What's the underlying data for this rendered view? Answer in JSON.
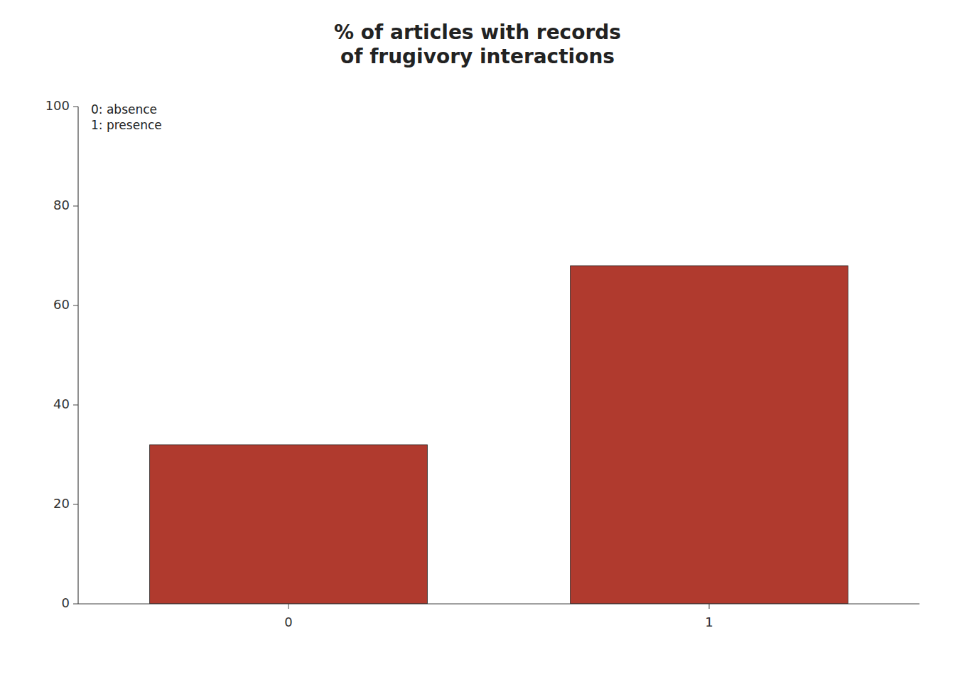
{
  "chart_data": {
    "type": "bar",
    "title": "% of articles with records\nof frugivory interactions",
    "categories": [
      "0",
      "1"
    ],
    "values": [
      32,
      68
    ],
    "color": "#b03a2e",
    "ylim": [
      0,
      100
    ],
    "yticks": [
      0,
      20,
      40,
      60,
      80,
      100
    ],
    "annotation": "0: absence\n1: presence",
    "grid": false
  }
}
